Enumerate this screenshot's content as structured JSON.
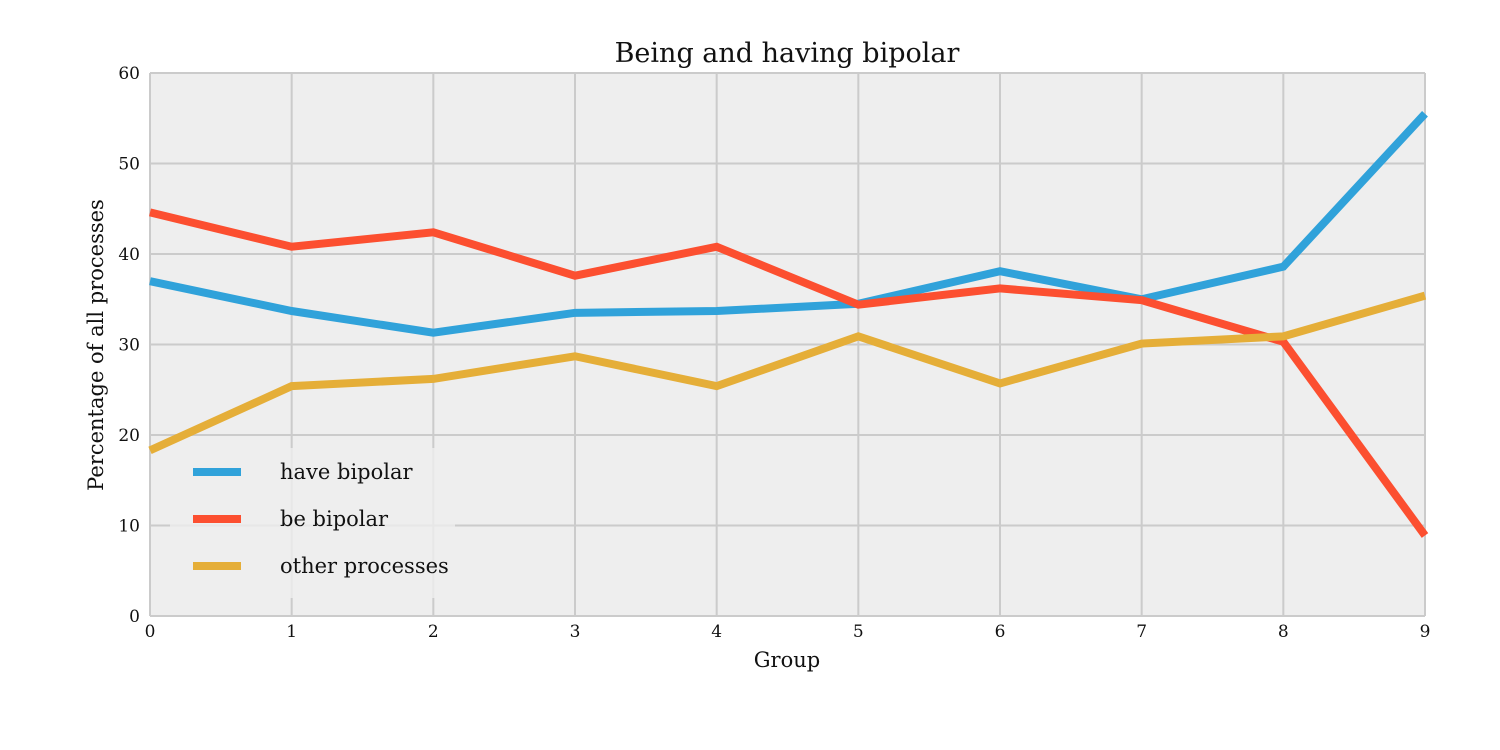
{
  "chart_data": {
    "type": "line",
    "title": "Being and having bipolar",
    "xlabel": "Group",
    "ylabel": "Percentage of all processes",
    "x": [
      0,
      1,
      2,
      3,
      4,
      5,
      6,
      7,
      8,
      9
    ],
    "xlim": [
      0,
      9
    ],
    "ylim": [
      0,
      60
    ],
    "yticks": [
      0,
      10,
      20,
      30,
      40,
      50,
      60
    ],
    "grid": true,
    "legend_position": "lower-left",
    "series": [
      {
        "name": "have bipolar",
        "color": "#30a2da",
        "values": [
          37.0,
          33.7,
          31.3,
          33.5,
          33.7,
          34.5,
          38.1,
          35.0,
          38.6,
          55.5
        ]
      },
      {
        "name": "be bipolar",
        "color": "#fc4f30",
        "values": [
          44.6,
          40.8,
          42.4,
          37.6,
          40.8,
          34.4,
          36.2,
          34.9,
          30.3,
          8.9
        ]
      },
      {
        "name": "other processes",
        "color": "#e5ae38",
        "values": [
          18.3,
          25.4,
          26.2,
          28.7,
          25.4,
          30.9,
          25.7,
          30.1,
          30.9,
          35.4
        ]
      }
    ],
    "colors": {
      "plot_background": "#eeeeee",
      "grid": "#cbcbcb"
    }
  }
}
